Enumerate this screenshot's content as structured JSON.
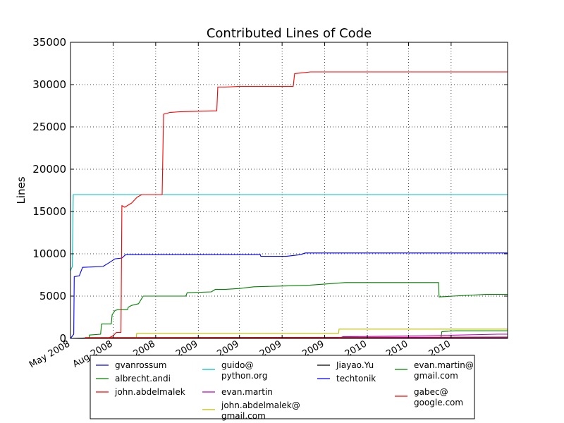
{
  "chart_data": {
    "type": "line",
    "title": "Contributed Lines of Code",
    "xlabel": "",
    "ylabel": "Lines",
    "ylim": [
      0,
      35000
    ],
    "yticks": [
      0,
      5000,
      10000,
      15000,
      20000,
      25000,
      30000,
      35000
    ],
    "xlim": [
      "2008-05-01",
      "2010-12-01"
    ],
    "xticks": [
      {
        "date": "2008-05-01",
        "label": "May 2008"
      },
      {
        "date": "2008-08-01",
        "label": "Aug 2008"
      },
      {
        "date": "2008-11-01",
        "label": "2008"
      },
      {
        "date": "2009-02-01",
        "label": "2009"
      },
      {
        "date": "2009-05-01",
        "label": "2009"
      },
      {
        "date": "2009-08-01",
        "label": "2009"
      },
      {
        "date": "2009-11-01",
        "label": "2009"
      },
      {
        "date": "2010-02-01",
        "label": "2010"
      },
      {
        "date": "2010-05-01",
        "label": "2010"
      },
      {
        "date": "2010-08-01",
        "label": "2010"
      }
    ],
    "grid": true,
    "legend_position": "bottom",
    "series": [
      {
        "name": "gvanrossum",
        "color": "#0000ff",
        "points": [
          [
            "2008-05-01",
            0
          ],
          [
            "2008-05-08",
            500
          ],
          [
            "2008-05-09",
            7300
          ],
          [
            "2008-05-20",
            7400
          ],
          [
            "2008-05-27",
            8400
          ],
          [
            "2008-07-10",
            8500
          ],
          [
            "2008-07-22",
            8900
          ],
          [
            "2008-08-05",
            9400
          ],
          [
            "2008-08-20",
            9500
          ],
          [
            "2008-08-28",
            9900
          ],
          [
            "2009-06-15",
            9900
          ],
          [
            "2009-06-16",
            9700
          ],
          [
            "2009-08-10",
            9700
          ],
          [
            "2009-09-10",
            9900
          ],
          [
            "2009-09-20",
            10100
          ],
          [
            "2010-12-01",
            10100
          ]
        ]
      },
      {
        "name": "albrecht.andi",
        "color": "#008000",
        "points": [
          [
            "2008-05-01",
            0
          ],
          [
            "2008-06-10",
            0
          ],
          [
            "2008-06-11",
            400
          ],
          [
            "2008-07-05",
            500
          ],
          [
            "2008-07-07",
            1700
          ],
          [
            "2008-07-28",
            1700
          ],
          [
            "2008-07-30",
            2800
          ],
          [
            "2008-08-05",
            3300
          ],
          [
            "2008-08-12",
            3400
          ],
          [
            "2008-09-01",
            3400
          ],
          [
            "2008-09-03",
            3700
          ],
          [
            "2008-09-10",
            3900
          ],
          [
            "2008-09-25",
            4100
          ],
          [
            "2008-10-05",
            5000
          ],
          [
            "2009-01-05",
            5000
          ],
          [
            "2009-01-08",
            5400
          ],
          [
            "2009-03-01",
            5500
          ],
          [
            "2009-03-10",
            5800
          ],
          [
            "2009-04-01",
            5800
          ],
          [
            "2009-05-01",
            5900
          ],
          [
            "2009-06-01",
            6100
          ],
          [
            "2009-08-10",
            6200
          ],
          [
            "2009-10-01",
            6300
          ],
          [
            "2009-12-15",
            6600
          ],
          [
            "2010-07-05",
            6600
          ],
          [
            "2010-07-06",
            4900
          ],
          [
            "2010-08-05",
            5000
          ],
          [
            "2010-10-15",
            5200
          ],
          [
            "2010-12-01",
            5200
          ]
        ]
      },
      {
        "name": "john.abdelmalek",
        "color": "#ff0000",
        "points": [
          [
            "2008-05-01",
            0
          ],
          [
            "2008-07-20",
            0
          ],
          [
            "2008-08-01",
            300
          ],
          [
            "2008-08-08",
            700
          ],
          [
            "2008-08-18",
            700
          ],
          [
            "2008-08-20",
            15700
          ],
          [
            "2008-08-26",
            15500
          ],
          [
            "2008-09-10",
            16000
          ],
          [
            "2008-09-22",
            16700
          ],
          [
            "2008-10-02",
            17000
          ],
          [
            "2008-11-15",
            17000
          ],
          [
            "2008-11-18",
            26500
          ],
          [
            "2008-12-01",
            26700
          ],
          [
            "2008-12-25",
            26800
          ],
          [
            "2009-03-13",
            26900
          ],
          [
            "2009-03-15",
            29700
          ],
          [
            "2009-04-01",
            29700
          ],
          [
            "2009-05-01",
            29800
          ],
          [
            "2009-08-25",
            29800
          ],
          [
            "2009-08-28",
            31300
          ],
          [
            "2009-09-15",
            31400
          ],
          [
            "2009-10-01",
            31500
          ],
          [
            "2010-12-01",
            31500
          ]
        ]
      },
      {
        "name": "guido@ python.org",
        "color": "#00bfbf",
        "points": [
          [
            "2008-05-01",
            8000
          ],
          [
            "2008-05-05",
            8500
          ],
          [
            "2008-05-07",
            17000
          ],
          [
            "2010-12-01",
            17000
          ]
        ]
      },
      {
        "name": "evan.martin",
        "color": "#bf00bf",
        "points": [
          [
            "2008-05-01",
            0
          ],
          [
            "2009-12-01",
            0
          ],
          [
            "2009-12-10",
            200
          ],
          [
            "2010-06-01",
            300
          ],
          [
            "2010-11-10",
            500
          ],
          [
            "2010-12-01",
            500
          ]
        ]
      },
      {
        "name": "john.abdelmalek@ gmail.com",
        "color": "#bfbf00",
        "points": [
          [
            "2008-05-01",
            0
          ],
          [
            "2008-09-20",
            0
          ],
          [
            "2008-09-21",
            600
          ],
          [
            "2009-12-01",
            600
          ],
          [
            "2009-12-02",
            1100
          ],
          [
            "2010-12-01",
            1100
          ]
        ]
      },
      {
        "name": "Jiayao.Yu",
        "color": "#000000",
        "points": [
          [
            "2008-05-01",
            0
          ],
          [
            "2008-06-01",
            50
          ],
          [
            "2010-12-01",
            150
          ]
        ]
      },
      {
        "name": "techtonik",
        "color": "#0000ff",
        "points": [
          [
            "2008-05-01",
            0
          ],
          [
            "2010-12-01",
            50
          ]
        ]
      },
      {
        "name": "evan.martin@ gmail.com",
        "color": "#008000",
        "points": [
          [
            "2008-05-01",
            0
          ],
          [
            "2010-07-10",
            0
          ],
          [
            "2010-07-12",
            800
          ],
          [
            "2010-08-10",
            900
          ],
          [
            "2010-12-01",
            900
          ]
        ]
      },
      {
        "name": "gabec@ google.com",
        "color": "#ff0000",
        "points": [
          [
            "2008-05-01",
            0
          ],
          [
            "2008-06-01",
            0
          ],
          [
            "2008-06-02",
            100
          ],
          [
            "2010-12-01",
            150
          ]
        ]
      }
    ]
  }
}
